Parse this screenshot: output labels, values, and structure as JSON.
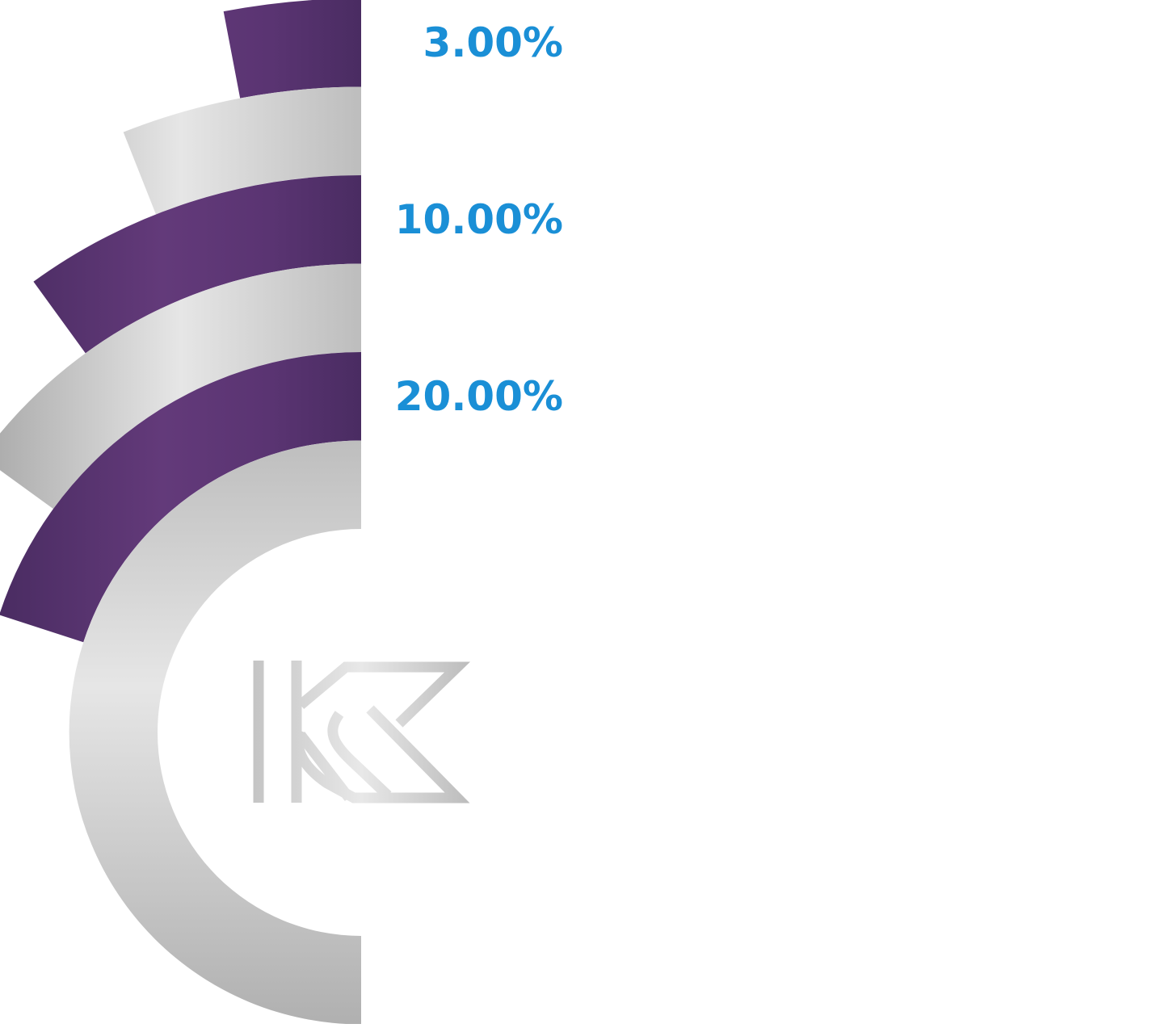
{
  "chart_data": {
    "type": "radial-bar",
    "rings": [
      {
        "label": "3.00%",
        "value": 3,
        "color": "purple"
      },
      {
        "label": "",
        "value": 6,
        "color": "silver"
      },
      {
        "label": "10.00%",
        "value": 10,
        "color": "purple"
      },
      {
        "label": "",
        "value": 15,
        "color": "silver"
      },
      {
        "label": "20.00%",
        "value": 20,
        "color": "purple"
      },
      {
        "label": "",
        "value": 50,
        "color": "silver"
      }
    ],
    "max_value": 100,
    "label_color": "#1a8fd6",
    "colors": {
      "purple_dark": "#4a2c62",
      "purple_light": "#633a7a",
      "silver_dark": "#aeaeae",
      "silver_light": "#e6e6e6"
    },
    "logo": {
      "icon": "kk-monogram-icon"
    }
  }
}
